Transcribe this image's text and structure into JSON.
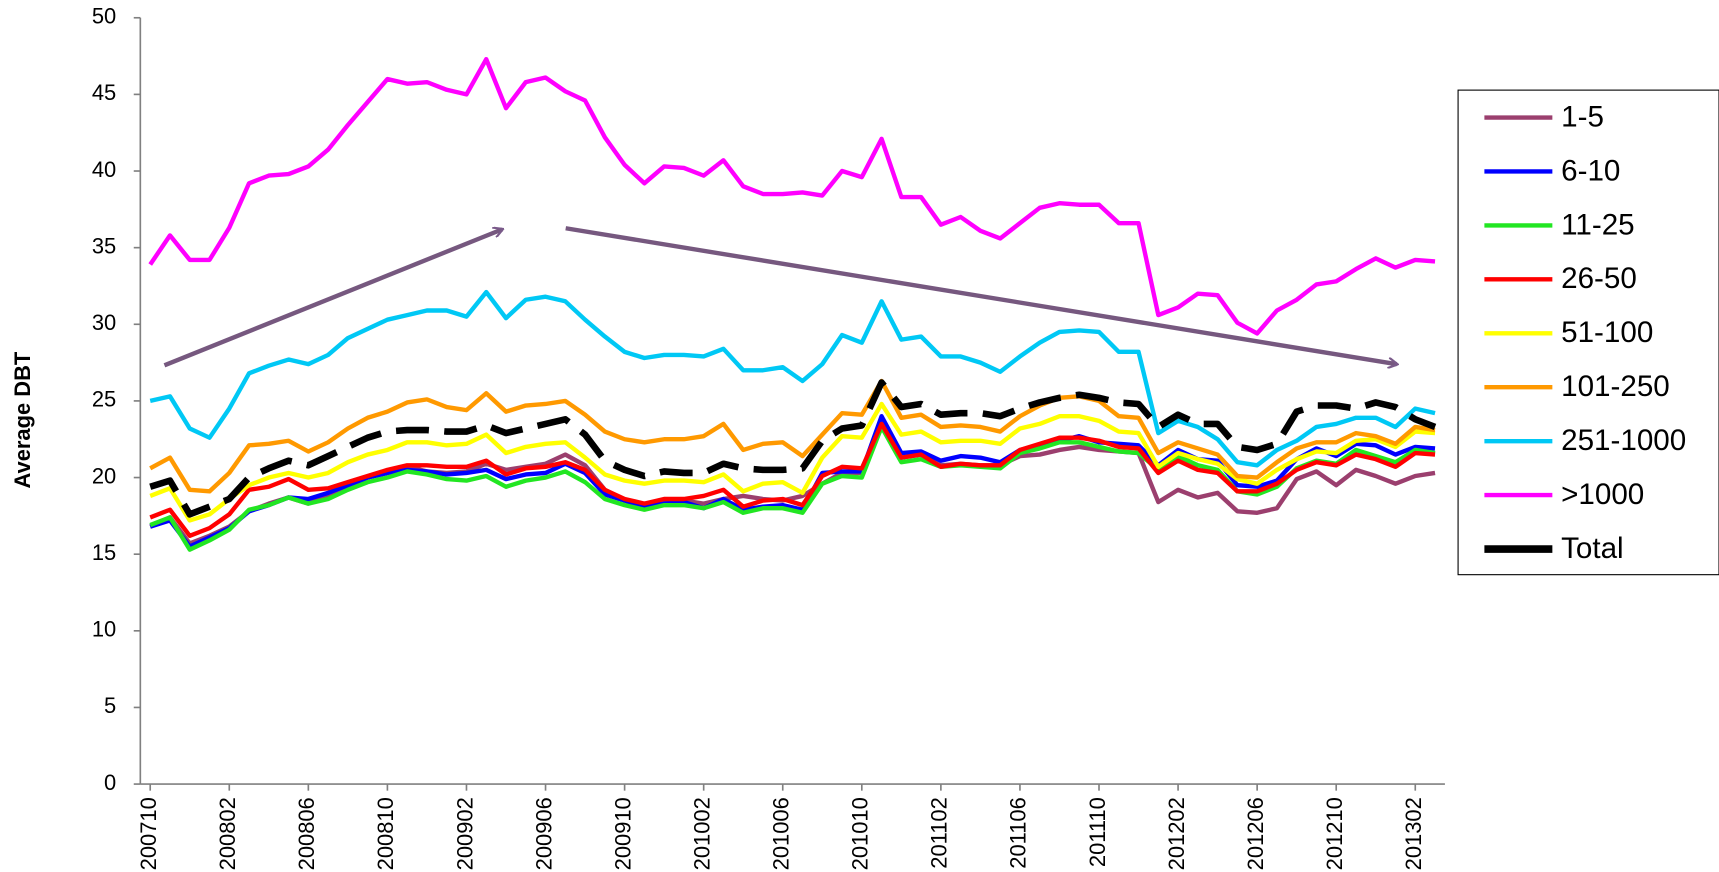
{
  "chart_data": {
    "type": "line",
    "y_label": "Average DBT",
    "categories": [
      "200710",
      null,
      null,
      null,
      "200802",
      null,
      null,
      null,
      "200806",
      null,
      null,
      null,
      "200810",
      null,
      null,
      null,
      "200902",
      null,
      null,
      null,
      "200906",
      null,
      null,
      null,
      "200910",
      null,
      null,
      null,
      "201002",
      null,
      null,
      null,
      "201006",
      null,
      null,
      null,
      "201010",
      null,
      null,
      null,
      "201102",
      null,
      null,
      null,
      "201106",
      null,
      null,
      null,
      "201110",
      null,
      null,
      null,
      "201202",
      null,
      null,
      null,
      "201206",
      null,
      null,
      null,
      "201210",
      null,
      null,
      null,
      "201302",
      null
    ],
    "ylim": [
      0,
      50
    ],
    "yticks": [
      0,
      5,
      10,
      15,
      20,
      25,
      30,
      35,
      40,
      45,
      50
    ],
    "grid": false,
    "legend": "right",
    "series": [
      {
        "name": "1-5",
        "color": "#9b3f6e",
        "values": [
          16.8,
          17.4,
          15.7,
          16.2,
          16.8,
          17.8,
          18.3,
          18.7,
          18.3,
          18.8,
          19.4,
          20.0,
          20.3,
          20.7,
          20.4,
          20.3,
          20.4,
          20.9,
          20.5,
          20.7,
          20.9,
          21.5,
          20.8,
          19.2,
          18.5,
          18.1,
          18.4,
          18.5,
          18.3,
          18.6,
          18.8,
          18.6,
          18.5,
          18.8,
          19.6,
          20.3,
          20.3,
          23.3,
          21.3,
          21.5,
          20.8,
          20.9,
          20.8,
          20.8,
          21.4,
          21.5,
          21.8,
          22.0,
          21.8,
          21.7,
          21.6,
          18.4,
          19.2,
          18.7,
          19.0,
          17.8,
          17.7,
          18.0,
          19.9,
          20.4,
          19.5,
          20.5,
          20.1,
          19.6,
          20.1,
          20.3
        ]
      },
      {
        "name": "6-10",
        "color": "#0000ff",
        "values": [
          16.8,
          17.2,
          15.5,
          16.1,
          16.7,
          17.8,
          18.2,
          18.7,
          18.6,
          19.0,
          19.5,
          20.0,
          20.3,
          20.5,
          20.4,
          20.2,
          20.3,
          20.5,
          19.9,
          20.2,
          20.3,
          20.9,
          20.3,
          18.9,
          18.5,
          18.1,
          18.3,
          18.4,
          18.0,
          18.6,
          17.9,
          18.1,
          18.2,
          17.9,
          20.3,
          20.4,
          20.4,
          24.0,
          21.6,
          21.7,
          21.1,
          21.4,
          21.3,
          21.0,
          21.8,
          22.1,
          22.4,
          22.7,
          22.3,
          22.2,
          22.1,
          20.8,
          21.8,
          21.2,
          21.1,
          19.5,
          19.4,
          19.8,
          21.2,
          21.9,
          21.4,
          22.2,
          22.1,
          21.5,
          22.0,
          21.9
        ]
      },
      {
        "name": "11-25",
        "color": "#22e622",
        "values": [
          16.9,
          17.4,
          15.3,
          15.9,
          16.6,
          17.9,
          18.2,
          18.7,
          18.3,
          18.6,
          19.2,
          19.7,
          20.0,
          20.4,
          20.2,
          19.9,
          19.8,
          20.1,
          19.4,
          19.8,
          20.0,
          20.4,
          19.7,
          18.6,
          18.2,
          17.9,
          18.2,
          18.2,
          18.0,
          18.4,
          17.7,
          18.0,
          18.0,
          17.7,
          19.6,
          20.1,
          20.0,
          23.3,
          21.0,
          21.2,
          20.7,
          20.8,
          20.7,
          20.6,
          21.6,
          21.9,
          22.3,
          22.3,
          22.0,
          21.7,
          21.6,
          20.5,
          21.4,
          20.8,
          20.5,
          19.1,
          18.9,
          19.4,
          20.6,
          21.1,
          20.9,
          21.8,
          21.4,
          21.0,
          21.8,
          21.6
        ]
      },
      {
        "name": "26-50",
        "color": "#ff0000",
        "values": [
          17.4,
          17.9,
          16.2,
          16.7,
          17.6,
          19.2,
          19.4,
          19.9,
          19.2,
          19.3,
          19.7,
          20.1,
          20.5,
          20.8,
          20.8,
          20.7,
          20.7,
          21.1,
          20.2,
          20.6,
          20.7,
          21.0,
          20.5,
          19.2,
          18.6,
          18.3,
          18.6,
          18.6,
          18.8,
          19.2,
          18.1,
          18.5,
          18.6,
          18.2,
          20.1,
          20.7,
          20.6,
          23.5,
          21.3,
          21.5,
          20.7,
          20.9,
          20.8,
          20.8,
          21.8,
          22.2,
          22.6,
          22.6,
          22.4,
          22.0,
          21.9,
          20.3,
          21.1,
          20.5,
          20.3,
          19.1,
          19.1,
          19.6,
          20.5,
          21.0,
          20.8,
          21.5,
          21.2,
          20.7,
          21.6,
          21.5
        ]
      },
      {
        "name": "51-100",
        "color": "#ffff00",
        "values": [
          18.8,
          19.3,
          17.2,
          17.6,
          18.6,
          19.5,
          20.0,
          20.3,
          20.0,
          20.3,
          21.0,
          21.5,
          21.8,
          22.3,
          22.3,
          22.1,
          22.2,
          22.8,
          21.6,
          22.0,
          22.2,
          22.3,
          21.3,
          20.2,
          19.8,
          19.6,
          19.8,
          19.8,
          19.7,
          20.2,
          19.1,
          19.6,
          19.7,
          19.0,
          21.3,
          22.7,
          22.6,
          24.8,
          22.8,
          23.0,
          22.3,
          22.4,
          22.4,
          22.2,
          23.2,
          23.5,
          24.0,
          24.0,
          23.7,
          23.0,
          22.9,
          20.7,
          21.6,
          21.2,
          20.9,
          19.9,
          19.6,
          20.5,
          21.2,
          21.7,
          21.6,
          22.4,
          22.5,
          22.0,
          23.0,
          22.9
        ]
      },
      {
        "name": "101-250",
        "color": "#ff9900",
        "values": [
          20.6,
          21.3,
          19.2,
          19.1,
          20.3,
          22.1,
          22.2,
          22.4,
          21.7,
          22.3,
          23.2,
          23.9,
          24.3,
          24.9,
          25.1,
          24.6,
          24.4,
          25.5,
          24.3,
          24.7,
          24.8,
          25.0,
          24.1,
          23.0,
          22.5,
          22.3,
          22.5,
          22.5,
          22.7,
          23.5,
          21.8,
          22.2,
          22.3,
          21.4,
          22.8,
          24.2,
          24.1,
          26.3,
          23.9,
          24.1,
          23.3,
          23.4,
          23.3,
          23.0,
          24.0,
          24.7,
          25.2,
          25.3,
          25.0,
          24.0,
          23.9,
          21.6,
          22.3,
          21.9,
          21.5,
          20.1,
          20.0,
          21.0,
          21.9,
          22.3,
          22.3,
          22.9,
          22.7,
          22.2,
          23.3,
          23.1
        ]
      },
      {
        "name": "251-1000",
        "color": "#00c8f5",
        "values": [
          25.0,
          25.3,
          23.2,
          22.6,
          24.5,
          26.8,
          27.3,
          27.7,
          27.4,
          28.0,
          29.1,
          29.7,
          30.3,
          30.6,
          30.9,
          30.9,
          30.5,
          32.1,
          30.4,
          31.6,
          31.8,
          31.5,
          30.3,
          29.2,
          28.2,
          27.8,
          28.0,
          28.0,
          27.9,
          28.4,
          27.0,
          27.0,
          27.2,
          26.3,
          27.4,
          29.3,
          28.8,
          31.5,
          29.0,
          29.2,
          27.9,
          27.9,
          27.5,
          26.9,
          27.9,
          28.8,
          29.5,
          29.6,
          29.5,
          28.2,
          28.2,
          22.9,
          23.7,
          23.3,
          22.5,
          21.0,
          20.8,
          21.8,
          22.4,
          23.3,
          23.5,
          23.9,
          23.9,
          23.3,
          24.5,
          24.2
        ]
      },
      {
        "name": ">1000",
        "color": "#ff00ff",
        "values": [
          33.9,
          35.8,
          34.2,
          34.2,
          36.3,
          39.2,
          39.7,
          39.8,
          40.3,
          41.4,
          43.0,
          44.5,
          46.0,
          45.7,
          45.8,
          45.3,
          45.0,
          47.3,
          44.1,
          45.8,
          46.1,
          45.2,
          44.6,
          42.2,
          40.4,
          39.2,
          40.3,
          40.2,
          39.7,
          40.7,
          39.0,
          38.5,
          38.5,
          38.6,
          38.4,
          40.0,
          39.6,
          42.1,
          38.3,
          38.3,
          36.5,
          37.0,
          36.1,
          35.6,
          36.6,
          37.6,
          37.9,
          37.8,
          37.8,
          36.6,
          36.6,
          30.6,
          31.1,
          32.0,
          31.9,
          30.1,
          29.4,
          30.9,
          31.6,
          32.6,
          32.8,
          33.6,
          34.3,
          33.7,
          34.2,
          34.1
        ]
      },
      {
        "name": "Total",
        "color": "#000000",
        "line_style": "dashed",
        "values": [
          19.4,
          19.8,
          17.6,
          18.1,
          18.6,
          20.0,
          20.6,
          21.1,
          20.8,
          21.4,
          22.0,
          22.6,
          23.0,
          23.1,
          23.1,
          23.0,
          23.0,
          23.4,
          22.9,
          23.2,
          23.5,
          23.8,
          22.8,
          21.1,
          20.5,
          20.1,
          20.4,
          20.3,
          20.3,
          20.9,
          20.6,
          20.5,
          20.5,
          20.6,
          22.4,
          23.2,
          23.4,
          26.2,
          24.6,
          24.8,
          24.1,
          24.2,
          24.2,
          24.0,
          24.5,
          24.9,
          25.2,
          25.4,
          25.2,
          24.9,
          24.8,
          23.3,
          24.1,
          23.5,
          23.5,
          22.0,
          21.8,
          22.2,
          24.3,
          24.7,
          24.7,
          24.5,
          24.9,
          24.6,
          23.8,
          23.3
        ]
      }
    ]
  }
}
